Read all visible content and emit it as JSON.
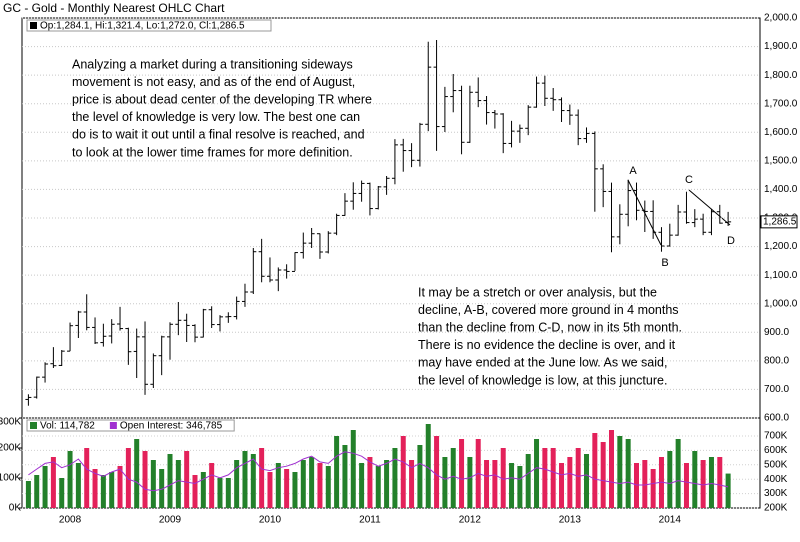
{
  "chart_data": [
    {
      "type": "ohlc",
      "title": "GC - Gold - Monthly Nearest OHLC Chart",
      "legend": "Op:1,284.1, Hi:1,321.4, Lo:1,272.0, Cl:1,286.5",
      "color": "#000000",
      "grid": true,
      "categories": [
        null,
        null,
        null,
        null,
        null,
        "2008",
        null,
        null,
        null,
        null,
        null,
        null,
        null,
        null,
        null,
        null,
        null,
        "2009",
        null,
        null,
        null,
        null,
        null,
        null,
        null,
        null,
        null,
        null,
        null,
        "2010",
        null,
        null,
        null,
        null,
        null,
        null,
        null,
        null,
        null,
        null,
        null,
        "2011",
        null,
        null,
        null,
        null,
        null,
        null,
        null,
        null,
        null,
        null,
        null,
        "2012",
        null,
        null,
        null,
        null,
        null,
        null,
        null,
        null,
        null,
        null,
        null,
        "2013",
        null,
        null,
        null,
        null,
        null,
        null,
        null,
        null,
        null,
        null,
        null,
        "2014",
        null,
        null,
        null,
        null,
        null,
        null,
        null
      ],
      "open": [
        665,
        673,
        743,
        790,
        784,
        834,
        924,
        971,
        917,
        864,
        887,
        929,
        913,
        833,
        884,
        718,
        818,
        884,
        928,
        942,
        924,
        883,
        979,
        927,
        954,
        955,
        1008,
        1041,
        1182,
        1096,
        1083,
        1118,
        1113,
        1179,
        1212,
        1245,
        1181,
        1247,
        1309,
        1359,
        1386,
        1421,
        1333,
        1409,
        1439,
        1556,
        1536,
        1502,
        1628,
        1828,
        1620,
        1725,
        1746,
        1565,
        1740,
        1711,
        1669,
        1664,
        1561,
        1604,
        1614,
        1688,
        1772,
        1719,
        1714,
        1676,
        1660,
        1578,
        1596,
        1472,
        1393,
        1234,
        1313,
        1396,
        1327,
        1323,
        1250,
        1202,
        1240,
        1321,
        1284,
        1296,
        1250,
        1322,
        1284.1
      ],
      "high": [
        683,
        745,
        795,
        848,
        838,
        934,
        975,
        1033,
        952,
        930,
        946,
        989,
        916,
        913,
        938,
        826,
        888,
        935,
        1006,
        965,
        928,
        982,
        991,
        960,
        970,
        1025,
        1070,
        1195,
        1227,
        1162,
        1127,
        1138,
        1180,
        1249,
        1265,
        1246,
        1254,
        1315,
        1387,
        1425,
        1431,
        1424,
        1412,
        1447,
        1576,
        1577,
        1562,
        1633,
        1917,
        1923,
        1759,
        1804,
        1763,
        1763,
        1792,
        1727,
        1678,
        1667,
        1640,
        1627,
        1695,
        1795,
        1798,
        1755,
        1722,
        1697,
        1680,
        1617,
        1603,
        1488,
        1424,
        1348,
        1434,
        1424,
        1361,
        1362,
        1268,
        1280,
        1346,
        1392,
        1331,
        1315,
        1332,
        1346,
        1321.4
      ],
      "low": [
        643,
        668,
        724,
        775,
        782,
        834,
        880,
        907,
        859,
        850,
        861,
        906,
        786,
        740,
        681,
        705,
        750,
        804,
        890,
        866,
        865,
        882,
        915,
        903,
        933,
        945,
        989,
        1034,
        1075,
        1075,
        1044,
        1088,
        1115,
        1158,
        1195,
        1157,
        1176,
        1240,
        1308,
        1329,
        1357,
        1309,
        1330,
        1381,
        1418,
        1462,
        1478,
        1480,
        1604,
        1535,
        1601,
        1670,
        1523,
        1563,
        1688,
        1627,
        1613,
        1527,
        1547,
        1563,
        1590,
        1686,
        1692,
        1675,
        1636,
        1626,
        1555,
        1563,
        1322,
        1338,
        1180,
        1208,
        1271,
        1292,
        1251,
        1227,
        1182,
        1200,
        1238,
        1280,
        1268,
        1240,
        1240,
        1280,
        1272.0
      ],
      "close": [
        672,
        743,
        789,
        783,
        834,
        923,
        971,
        917,
        863,
        886,
        928,
        913,
        832,
        884,
        718,
        818,
        884,
        928,
        942,
        924,
        883,
        979,
        927,
        954,
        955,
        1008,
        1041,
        1182,
        1096,
        1083,
        1118,
        1113,
        1179,
        1212,
        1245,
        1181,
        1247,
        1309,
        1359,
        1386,
        1421,
        1333,
        1409,
        1439,
        1556,
        1536,
        1502,
        1628,
        1828,
        1620,
        1725,
        1746,
        1565,
        1740,
        1711,
        1669,
        1664,
        1561,
        1604,
        1614,
        1688,
        1772,
        1719,
        1714,
        1676,
        1660,
        1578,
        1596,
        1472,
        1393,
        1234,
        1313,
        1396,
        1327,
        1323,
        1250,
        1202,
        1240,
        1321,
        1284,
        1296,
        1250,
        1322,
        1282,
        1286.5
      ],
      "last_label": {
        "value": 1286.5,
        "label": "1,286.5"
      },
      "ylim": [
        600,
        2000
      ],
      "yticks": [
        {
          "value": 600,
          "label": "600.0"
        },
        {
          "value": 700,
          "label": "700.0"
        },
        {
          "value": 800,
          "label": "800.0"
        },
        {
          "value": 900,
          "label": "900.0"
        },
        {
          "value": 1000,
          "label": "1,000.0"
        },
        {
          "value": 1100,
          "label": "1,100.0"
        },
        {
          "value": 1200,
          "label": "1,200.0"
        },
        {
          "value": 1300,
          "label": "1,300.0"
        },
        {
          "value": 1400,
          "label": "1,400.0"
        },
        {
          "value": 1500,
          "label": "1,500.0"
        },
        {
          "value": 1600,
          "label": "1,600.0"
        },
        {
          "value": 1700,
          "label": "1,700.0"
        },
        {
          "value": 1800,
          "label": "1,800.0"
        },
        {
          "value": 1900,
          "label": "1,900.0"
        },
        {
          "value": 2000,
          "label": "2,000.0"
        }
      ],
      "point_labels": [
        "A",
        "B",
        "C",
        "D"
      ],
      "annotations": [
        [
          "Analyzing a market during a transitioning sideways",
          "movement is not easy, and as of the end of August,",
          "price is about dead center of the developing TR where",
          "the level of knowledge is very low.  The best one can",
          "do is to wait it out until a final resolve is reached, and",
          "to look at the lower time frames for more definition."
        ],
        [
          "It may be a stretch or over analysis, but the",
          "decline, A-B, covered more ground in 4 months",
          "than the decline from C-D, now in its 5th month.",
          "There is no evidence the decline is over, and it",
          "may have ended at the June low.  As we said,",
          "the level of knowledge is low, at this juncture."
        ]
      ]
    },
    {
      "type": "volume",
      "series": [
        {
          "name": "Vol: 114,782",
          "color": "#23802a",
          "down_color": "#e3215a",
          "values": [
            90000,
            110000,
            140000,
            170000,
            100000,
            190000,
            150000,
            200000,
            130000,
            110000,
            120000,
            140000,
            200000,
            230000,
            190000,
            160000,
            130000,
            180000,
            160000,
            190000,
            110000,
            120000,
            150000,
            100000,
            100000,
            160000,
            190000,
            180000,
            200000,
            120000,
            150000,
            130000,
            120000,
            160000,
            170000,
            150000,
            140000,
            240000,
            210000,
            260000,
            150000,
            170000,
            140000,
            160000,
            200000,
            240000,
            160000,
            210000,
            280000,
            240000,
            170000,
            200000,
            230000,
            170000,
            230000,
            160000,
            160000,
            200000,
            150000,
            140000,
            180000,
            230000,
            200000,
            200000,
            150000,
            170000,
            200000,
            180000,
            250000,
            220000,
            260000,
            240000,
            230000,
            150000,
            160000,
            130000,
            170000,
            190000,
            230000,
            150000,
            190000,
            160000,
            170000,
            170000,
            114782
          ]
        },
        {
          "name": "Open Interest: 346,785",
          "color": "#a030d0",
          "axis": "y2",
          "values": [
            430000,
            470000,
            510000,
            520000,
            480000,
            500000,
            540000,
            470000,
            440000,
            420000,
            450000,
            470000,
            400000,
            380000,
            330000,
            320000,
            330000,
            360000,
            390000,
            380000,
            370000,
            400000,
            430000,
            410000,
            430000,
            480000,
            510000,
            540000,
            470000,
            460000,
            480000,
            490000,
            510000,
            540000,
            560000,
            520000,
            510000,
            560000,
            590000,
            580000,
            560000,
            520000,
            490000,
            510000,
            540000,
            520000,
            480000,
            510000,
            480000,
            430000,
            400000,
            420000,
            400000,
            410000,
            440000,
            420000,
            430000,
            400000,
            410000,
            400000,
            440000,
            480000,
            470000,
            450000,
            430000,
            440000,
            420000,
            430000,
            400000,
            390000,
            380000,
            370000,
            380000,
            360000,
            360000,
            370000,
            380000,
            370000,
            390000,
            380000,
            370000,
            360000,
            370000,
            360000,
            346785
          ]
        }
      ],
      "ylim": [
        0,
        300000
      ],
      "yticks": [
        {
          "value": 0,
          "label": "0K"
        },
        {
          "value": 100000,
          "label": "100K"
        },
        {
          "value": 200000,
          "label": "200K"
        },
        {
          "value": 300000,
          "label": "300K"
        }
      ],
      "y2lim": [
        200000,
        825000
      ],
      "y2ticks": [
        {
          "value": 200000,
          "label": "200K"
        },
        {
          "value": 300000,
          "label": "300K"
        },
        {
          "value": 400000,
          "label": "400K"
        },
        {
          "value": 500000,
          "label": "500K"
        },
        {
          "value": 600000,
          "label": "600K"
        },
        {
          "value": 700000,
          "label": "700K"
        }
      ]
    }
  ]
}
